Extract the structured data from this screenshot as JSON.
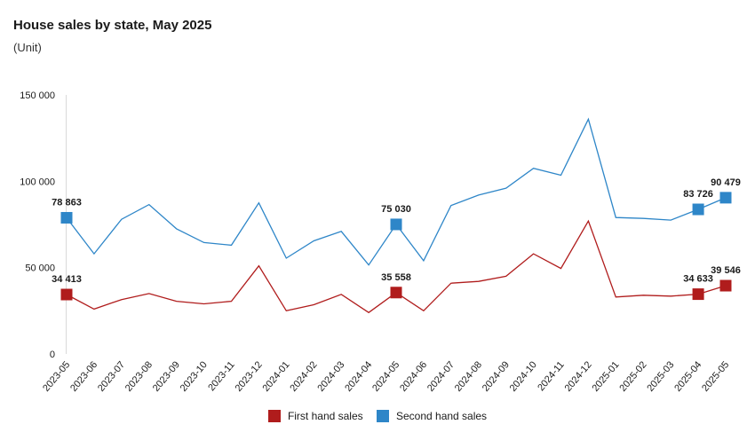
{
  "chart_data": {
    "type": "line",
    "title": "House sales by state, May 2025",
    "subtitle": "(Unit)",
    "xlabel": "",
    "ylabel": "",
    "ylim": [
      0,
      150000
    ],
    "yticks": [
      0,
      50000,
      100000,
      150000
    ],
    "ytick_labels": [
      "0",
      "50 000",
      "100 000",
      "150 000"
    ],
    "grid": false,
    "legend_position": "bottom",
    "categories": [
      "2023-05",
      "2023-06",
      "2023-07",
      "2023-08",
      "2023-09",
      "2023-10",
      "2023-11",
      "2023-12",
      "2024-01",
      "2024-02",
      "2024-03",
      "2024-04",
      "2024-05",
      "2024-06",
      "2024-07",
      "2024-08",
      "2024-09",
      "2024-10",
      "2024-11",
      "2024-12",
      "2025-01",
      "2025-02",
      "2025-03",
      "2025-04",
      "2025-05"
    ],
    "series": [
      {
        "name": "First hand sales",
        "color": "#b01c1c",
        "values": [
          34413,
          26000,
          31500,
          35000,
          30500,
          29000,
          30500,
          51000,
          25000,
          28500,
          34500,
          24000,
          35558,
          25000,
          41000,
          42000,
          45000,
          58000,
          49500,
          77000,
          33000,
          34000,
          33500,
          34633,
          39546
        ],
        "labels": {
          "0": "34 413",
          "12": "35 558",
          "23": "34 633",
          "24": "39 546"
        }
      },
      {
        "name": "Second hand sales",
        "color": "#2e86c8",
        "values": [
          78863,
          58000,
          78000,
          86500,
          72500,
          64500,
          63000,
          87500,
          55500,
          65500,
          71000,
          51500,
          75030,
          54000,
          86000,
          92000,
          96000,
          107500,
          103500,
          136000,
          79000,
          78500,
          77500,
          83726,
          90479
        ],
        "labels": {
          "0": "78 863",
          "12": "75 030",
          "23": "83 726",
          "24": "90 479"
        }
      }
    ]
  }
}
